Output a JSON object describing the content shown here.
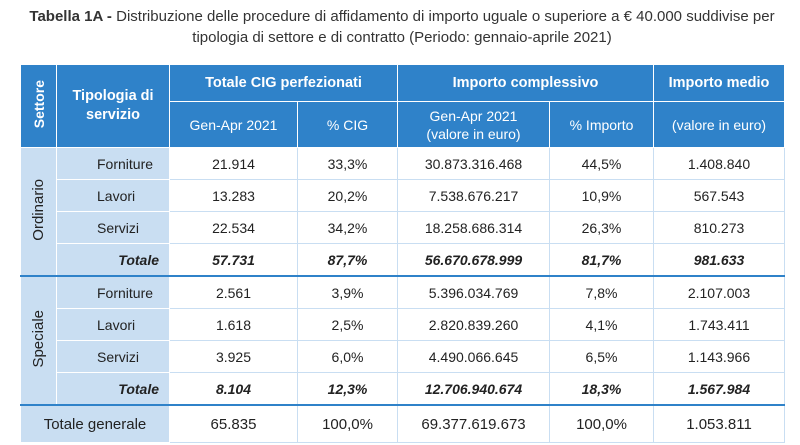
{
  "caption": {
    "bold": "Tabella 1A - ",
    "text": "Distribuzione delle procedure di affidamento di importo uguale o superiore a € 40.000 suddivise per tipologia di settore e di contratto (Periodo: gennaio-aprile 2021)"
  },
  "header": {
    "settore": "Settore",
    "tipologia": "Tipologia di servizio",
    "cig_group": "Totale CIG perfezionati",
    "importo_group": "Importo complessivo",
    "medio_group": "Importo medio",
    "cig_period": "Gen-Apr 2021",
    "cig_pct": "% CIG",
    "importo_period_l1": "Gen-Apr 2021",
    "importo_period_l2": "(valore in euro)",
    "importo_pct": "% Importo",
    "medio_unit": "(valore in euro)"
  },
  "groups": [
    {
      "name": "Ordinario",
      "rows": [
        {
          "tipo": "Forniture",
          "cig": "21.914",
          "cig_pct": "33,3%",
          "importo": "30.873.316.468",
          "importo_pct": "44,5%",
          "medio": "1.408.840"
        },
        {
          "tipo": "Lavori",
          "cig": "13.283",
          "cig_pct": "20,2%",
          "importo": "7.538.676.217",
          "importo_pct": "10,9%",
          "medio": "567.543"
        },
        {
          "tipo": "Servizi",
          "cig": "22.534",
          "cig_pct": "34,2%",
          "importo": "18.258.686.314",
          "importo_pct": "26,3%",
          "medio": "810.273"
        },
        {
          "tipo": "Totale",
          "cig": "57.731",
          "cig_pct": "87,7%",
          "importo": "56.670.678.999",
          "importo_pct": "81,7%",
          "medio": "981.633"
        }
      ]
    },
    {
      "name": "Speciale",
      "rows": [
        {
          "tipo": "Forniture",
          "cig": "2.561",
          "cig_pct": "3,9%",
          "importo": "5.396.034.769",
          "importo_pct": "7,8%",
          "medio": "2.107.003"
        },
        {
          "tipo": "Lavori",
          "cig": "1.618",
          "cig_pct": "2,5%",
          "importo": "2.820.839.260",
          "importo_pct": "4,1%",
          "medio": "1.743.411"
        },
        {
          "tipo": "Servizi",
          "cig": "3.925",
          "cig_pct": "6,0%",
          "importo": "4.490.066.645",
          "importo_pct": "6,5%",
          "medio": "1.143.966"
        },
        {
          "tipo": "Totale",
          "cig": "8.104",
          "cig_pct": "12,3%",
          "importo": "12.706.940.674",
          "importo_pct": "18,3%",
          "medio": "1.567.984"
        }
      ]
    }
  ],
  "totale_generale": {
    "label": "Totale generale",
    "cig": "65.835",
    "cig_pct": "100,0%",
    "importo": "69.377.619.673",
    "importo_pct": "100,0%",
    "medio": "1.053.811"
  }
}
